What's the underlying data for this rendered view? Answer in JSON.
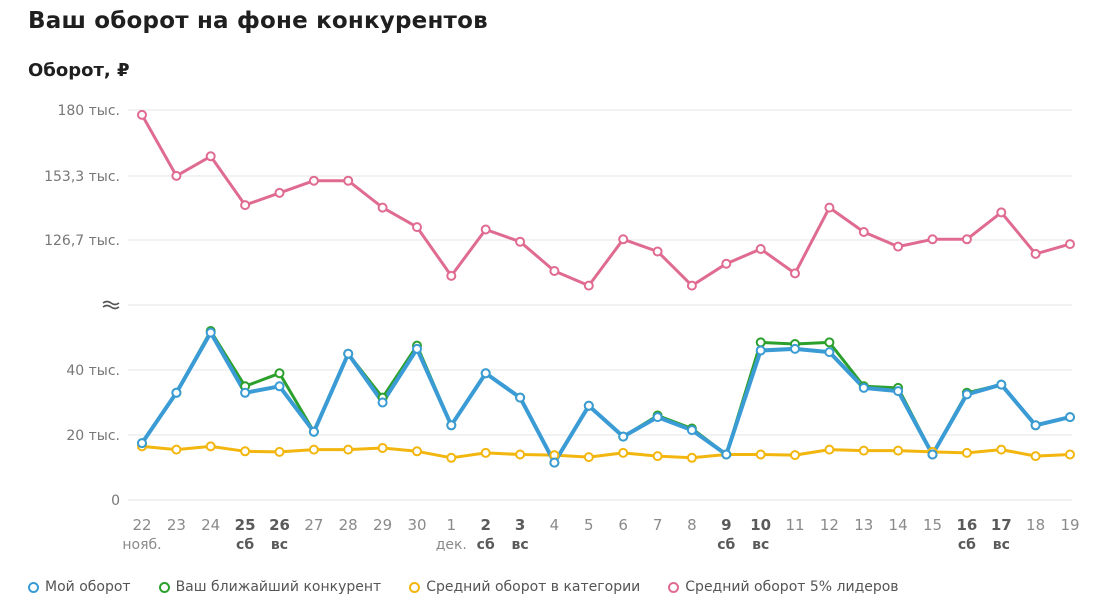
{
  "title": "Ваш оборот на фоне конкурентов",
  "subtitle": "Оборот, ₽",
  "chart_data": {
    "type": "line",
    "y_axis_break": true,
    "y_ticks_upper": [
      "180 тыс.",
      "153,3 тыс.",
      "126,7 тыс."
    ],
    "y_ticks_lower": [
      "40 тыс.",
      "20 тыс.",
      "0"
    ],
    "x": [
      {
        "day": "22",
        "sub": "нояб.",
        "bold": false
      },
      {
        "day": "23",
        "sub": "",
        "bold": false
      },
      {
        "day": "24",
        "sub": "",
        "bold": false
      },
      {
        "day": "25",
        "sub": "сб",
        "bold": true
      },
      {
        "day": "26",
        "sub": "вс",
        "bold": true
      },
      {
        "day": "27",
        "sub": "",
        "bold": false
      },
      {
        "day": "28",
        "sub": "",
        "bold": false
      },
      {
        "day": "29",
        "sub": "",
        "bold": false
      },
      {
        "day": "30",
        "sub": "",
        "bold": false
      },
      {
        "day": "1",
        "sub": "дек.",
        "bold": false
      },
      {
        "day": "2",
        "sub": "сб",
        "bold": true
      },
      {
        "day": "3",
        "sub": "вс",
        "bold": true
      },
      {
        "day": "4",
        "sub": "",
        "bold": false
      },
      {
        "day": "5",
        "sub": "",
        "bold": false
      },
      {
        "day": "6",
        "sub": "",
        "bold": false
      },
      {
        "day": "7",
        "sub": "",
        "bold": false
      },
      {
        "day": "8",
        "sub": "",
        "bold": false
      },
      {
        "day": "9",
        "sub": "сб",
        "bold": true
      },
      {
        "day": "10",
        "sub": "вс",
        "bold": true
      },
      {
        "day": "11",
        "sub": "",
        "bold": false
      },
      {
        "day": "12",
        "sub": "",
        "bold": false
      },
      {
        "day": "13",
        "sub": "",
        "bold": false
      },
      {
        "day": "14",
        "sub": "",
        "bold": false
      },
      {
        "day": "15",
        "sub": "",
        "bold": false
      },
      {
        "day": "16",
        "sub": "сб",
        "bold": true
      },
      {
        "day": "17",
        "sub": "вс",
        "bold": true
      },
      {
        "day": "18",
        "sub": "",
        "bold": false
      },
      {
        "day": "19",
        "sub": "",
        "bold": false
      }
    ],
    "series": [
      {
        "key": "leaders",
        "name": "Средний оборот 5% лидеров",
        "color": "#e06b91",
        "values": [
          178,
          153,
          161,
          141,
          146,
          151,
          151,
          140,
          132,
          112,
          131,
          126,
          114,
          108,
          127,
          122,
          108,
          117,
          123,
          113,
          140,
          130,
          124,
          127,
          127,
          138,
          121,
          125
        ]
      },
      {
        "key": "competitor",
        "name": "Ваш ближайший конкурент",
        "color": "#2ca02c",
        "values": [
          17.5,
          33,
          52,
          35,
          39,
          21,
          45,
          31.5,
          47.5,
          23,
          39,
          31.5,
          11.5,
          29,
          19.5,
          26,
          22,
          14,
          48.5,
          48,
          48.5,
          35,
          34.5,
          14,
          33,
          35.5,
          23,
          25.5
        ]
      },
      {
        "key": "mine",
        "name": "Мой оборот",
        "color": "#3a9bd5",
        "values": [
          17.5,
          33,
          51.5,
          33,
          35,
          21,
          45,
          30,
          46.5,
          23,
          39,
          31.5,
          11.5,
          29,
          19.5,
          25.5,
          21.5,
          14,
          46,
          46.5,
          45.5,
          34.5,
          33.5,
          14,
          32.5,
          35.5,
          23,
          25.5
        ]
      },
      {
        "key": "category",
        "name": "Средний оборот в категории",
        "color": "#f2b60f",
        "values": [
          16.5,
          15.5,
          16.5,
          15,
          14.8,
          15.5,
          15.5,
          16,
          15,
          13,
          14.5,
          14,
          13.8,
          13.2,
          14.5,
          13.5,
          13,
          14,
          14,
          13.8,
          15.5,
          15.2,
          15.2,
          14.8,
          14.5,
          15.5,
          13.5,
          14
        ]
      }
    ],
    "legend_order": [
      "mine",
      "competitor",
      "category",
      "leaders"
    ],
    "legend_position": "bottom",
    "grid": true
  }
}
